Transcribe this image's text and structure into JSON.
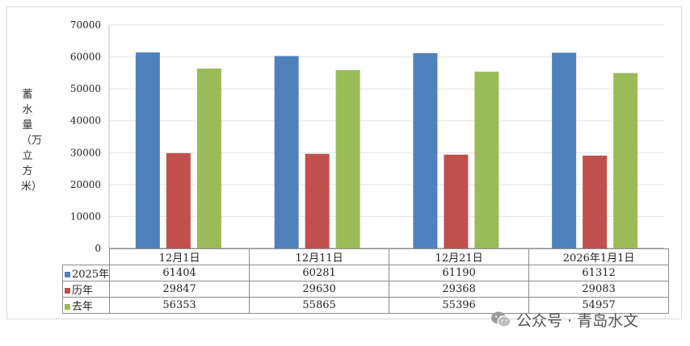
{
  "chart_data": {
    "type": "bar",
    "title": "",
    "xlabel": "",
    "ylabel": "蓄水量（万立方米）",
    "ylim": [
      0,
      70000
    ],
    "yticks": [
      0,
      10000,
      20000,
      30000,
      40000,
      50000,
      60000,
      70000
    ],
    "grid": true,
    "legend": "data-table",
    "categories": [
      "12月1日",
      "12月11日",
      "12月21日",
      "2026年1月1日"
    ],
    "series": [
      {
        "name": "2025年",
        "color": "#4f81bd",
        "values": [
          61404,
          60281,
          61190,
          61312
        ]
      },
      {
        "name": "历年",
        "color": "#c0504d",
        "values": [
          29847,
          29630,
          29368,
          29083
        ]
      },
      {
        "name": "去年",
        "color": "#9bbb59",
        "values": [
          56353,
          55865,
          55396,
          54957
        ]
      }
    ]
  },
  "watermark": {
    "text": "公众号 · 青岛水文",
    "icon": "wechat-icon"
  }
}
